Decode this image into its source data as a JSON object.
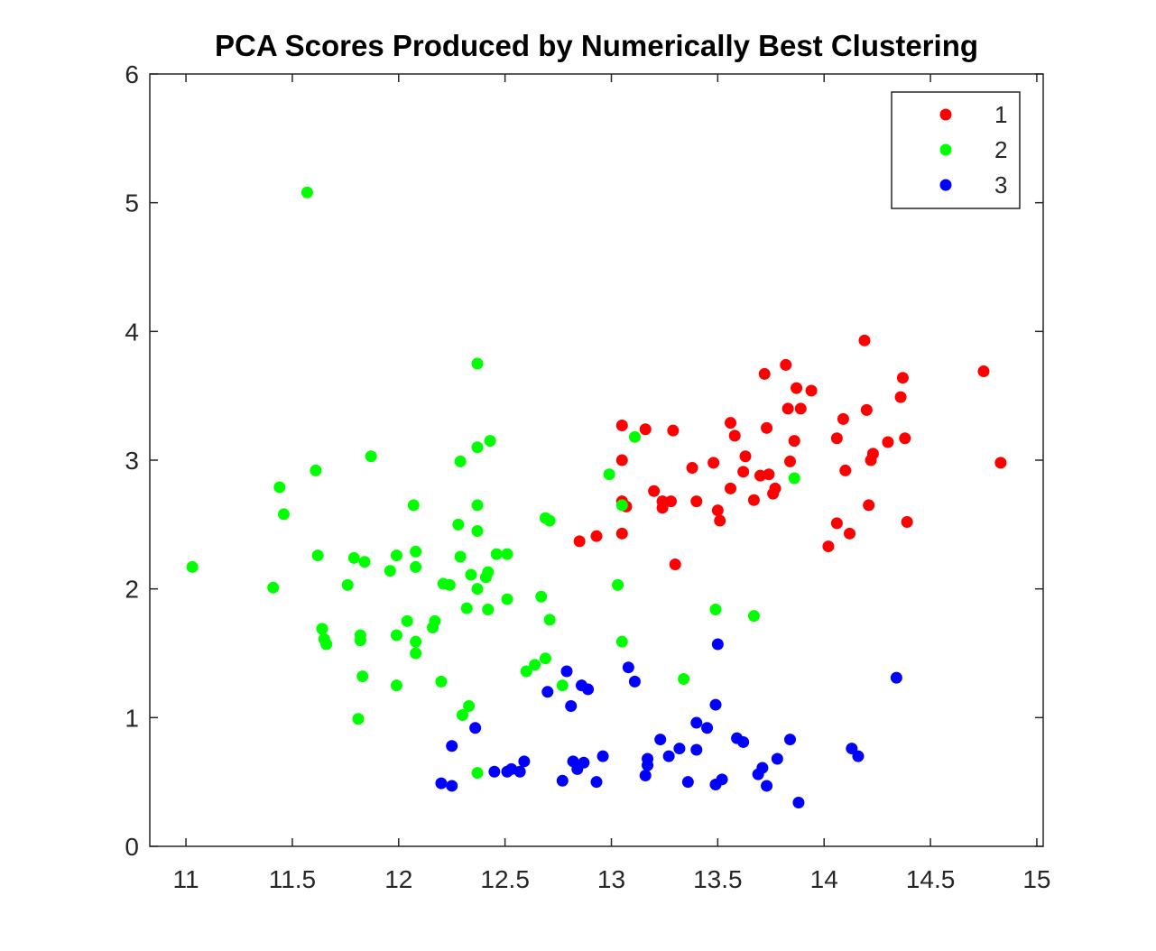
{
  "chart_data": {
    "type": "scatter",
    "title": "PCA Scores Produced by Numerically Best Clustering",
    "xlabel": "",
    "ylabel": "",
    "xlim": [
      10.83,
      15.03
    ],
    "ylim": [
      0,
      6
    ],
    "xticks": [
      11,
      11.5,
      12,
      12.5,
      13,
      13.5,
      14,
      14.5,
      15
    ],
    "xtick_labels": [
      "11",
      "11.5",
      "12",
      "12.5",
      "13",
      "13.5",
      "14",
      "14.5",
      "15"
    ],
    "yticks": [
      0,
      1,
      2,
      3,
      4,
      5,
      6
    ],
    "ytick_labels": [
      "0",
      "1",
      "2",
      "3",
      "4",
      "5",
      "6"
    ],
    "grid": false,
    "legend_position": "top-right",
    "series": [
      {
        "name": "1",
        "color": "#ff0000",
        "points": [
          [
            13.05,
            3.27
          ],
          [
            13.16,
            3.24
          ],
          [
            13.29,
            3.23
          ],
          [
            13.05,
            3.0
          ],
          [
            13.05,
            2.68
          ],
          [
            13.07,
            2.64
          ],
          [
            13.05,
            2.43
          ],
          [
            13.2,
            2.76
          ],
          [
            13.24,
            2.68
          ],
          [
            13.24,
            2.63
          ],
          [
            13.28,
            2.68
          ],
          [
            13.3,
            2.19
          ],
          [
            12.85,
            2.37
          ],
          [
            12.93,
            2.41
          ],
          [
            13.38,
            2.94
          ],
          [
            13.4,
            2.68
          ],
          [
            13.48,
            2.98
          ],
          [
            13.5,
            2.61
          ],
          [
            13.51,
            2.53
          ],
          [
            13.56,
            3.29
          ],
          [
            13.58,
            3.19
          ],
          [
            13.56,
            2.78
          ],
          [
            13.62,
            2.91
          ],
          [
            13.63,
            3.03
          ],
          [
            13.67,
            2.69
          ],
          [
            13.7,
            2.88
          ],
          [
            13.72,
            3.67
          ],
          [
            13.73,
            3.25
          ],
          [
            13.74,
            2.89
          ],
          [
            13.76,
            2.74
          ],
          [
            13.77,
            2.78
          ],
          [
            13.82,
            3.74
          ],
          [
            13.83,
            3.4
          ],
          [
            13.84,
            2.99
          ],
          [
            13.86,
            3.15
          ],
          [
            13.87,
            3.56
          ],
          [
            13.89,
            3.4
          ],
          [
            13.94,
            3.54
          ],
          [
            14.02,
            2.33
          ],
          [
            14.06,
            3.17
          ],
          [
            14.06,
            2.51
          ],
          [
            14.09,
            3.32
          ],
          [
            14.1,
            2.92
          ],
          [
            14.12,
            2.43
          ],
          [
            14.19,
            3.93
          ],
          [
            14.2,
            3.39
          ],
          [
            14.21,
            2.65
          ],
          [
            14.22,
            3.0
          ],
          [
            14.23,
            3.05
          ],
          [
            14.3,
            3.14
          ],
          [
            14.36,
            3.49
          ],
          [
            14.37,
            3.64
          ],
          [
            14.38,
            3.17
          ],
          [
            14.39,
            2.52
          ],
          [
            14.75,
            3.69
          ],
          [
            14.83,
            2.98
          ]
        ]
      },
      {
        "name": "2",
        "color": "#00ff00",
        "points": [
          [
            11.03,
            2.17
          ],
          [
            11.41,
            2.01
          ],
          [
            11.44,
            2.79
          ],
          [
            11.46,
            2.58
          ],
          [
            11.57,
            5.08
          ],
          [
            11.61,
            2.92
          ],
          [
            11.62,
            2.26
          ],
          [
            11.64,
            1.69
          ],
          [
            11.65,
            1.61
          ],
          [
            11.66,
            1.57
          ],
          [
            11.76,
            2.03
          ],
          [
            11.79,
            2.24
          ],
          [
            11.81,
            0.99
          ],
          [
            11.82,
            1.64
          ],
          [
            11.82,
            1.6
          ],
          [
            11.83,
            1.32
          ],
          [
            11.84,
            2.21
          ],
          [
            11.87,
            3.03
          ],
          [
            11.96,
            2.14
          ],
          [
            11.99,
            2.26
          ],
          [
            11.99,
            1.64
          ],
          [
            11.99,
            1.25
          ],
          [
            12.04,
            1.75
          ],
          [
            12.07,
            2.65
          ],
          [
            12.08,
            2.29
          ],
          [
            12.08,
            2.17
          ],
          [
            12.08,
            1.59
          ],
          [
            12.08,
            1.5
          ],
          [
            12.16,
            1.7
          ],
          [
            12.17,
            1.75
          ],
          [
            12.2,
            1.28
          ],
          [
            12.21,
            2.04
          ],
          [
            12.24,
            2.03
          ],
          [
            12.28,
            2.5
          ],
          [
            12.29,
            2.25
          ],
          [
            12.29,
            2.99
          ],
          [
            12.3,
            1.02
          ],
          [
            12.32,
            1.85
          ],
          [
            12.33,
            1.09
          ],
          [
            12.34,
            2.11
          ],
          [
            12.37,
            3.75
          ],
          [
            12.37,
            3.1
          ],
          [
            12.37,
            2.65
          ],
          [
            12.37,
            2.45
          ],
          [
            12.37,
            2.0
          ],
          [
            12.37,
            0.57
          ],
          [
            12.41,
            2.09
          ],
          [
            12.42,
            2.13
          ],
          [
            12.42,
            1.84
          ],
          [
            12.43,
            3.15
          ],
          [
            12.46,
            2.27
          ],
          [
            12.51,
            2.27
          ],
          [
            12.51,
            1.92
          ],
          [
            12.6,
            1.36
          ],
          [
            12.64,
            1.41
          ],
          [
            12.67,
            1.94
          ],
          [
            12.69,
            2.55
          ],
          [
            12.69,
            1.46
          ],
          [
            12.71,
            2.53
          ],
          [
            12.71,
            1.76
          ],
          [
            12.77,
            1.25
          ],
          [
            12.99,
            2.89
          ],
          [
            13.03,
            2.03
          ],
          [
            13.05,
            2.65
          ],
          [
            13.05,
            1.59
          ],
          [
            13.11,
            3.18
          ],
          [
            13.34,
            1.3
          ],
          [
            13.49,
            1.84
          ],
          [
            13.67,
            1.79
          ],
          [
            13.86,
            2.86
          ]
        ]
      },
      {
        "name": "3",
        "color": "#0000ff",
        "points": [
          [
            12.2,
            0.49
          ],
          [
            12.25,
            0.47
          ],
          [
            12.25,
            0.78
          ],
          [
            12.36,
            0.92
          ],
          [
            12.45,
            0.58
          ],
          [
            12.51,
            0.58
          ],
          [
            12.53,
            0.6
          ],
          [
            12.57,
            0.58
          ],
          [
            12.59,
            0.66
          ],
          [
            12.7,
            1.2
          ],
          [
            12.77,
            0.51
          ],
          [
            12.79,
            1.36
          ],
          [
            12.81,
            1.09
          ],
          [
            12.82,
            0.66
          ],
          [
            12.84,
            0.6
          ],
          [
            12.86,
            1.25
          ],
          [
            12.87,
            0.65
          ],
          [
            12.89,
            1.22
          ],
          [
            12.93,
            0.5
          ],
          [
            12.96,
            0.7
          ],
          [
            13.08,
            1.39
          ],
          [
            13.11,
            1.28
          ],
          [
            13.16,
            0.55
          ],
          [
            13.17,
            0.63
          ],
          [
            13.17,
            0.68
          ],
          [
            13.23,
            0.83
          ],
          [
            13.27,
            0.7
          ],
          [
            13.32,
            0.76
          ],
          [
            13.36,
            0.5
          ],
          [
            13.4,
            0.75
          ],
          [
            13.4,
            0.96
          ],
          [
            13.45,
            0.92
          ],
          [
            13.49,
            1.1
          ],
          [
            13.49,
            0.48
          ],
          [
            13.5,
            1.57
          ],
          [
            13.52,
            0.52
          ],
          [
            13.59,
            0.84
          ],
          [
            13.62,
            0.81
          ],
          [
            13.69,
            0.56
          ],
          [
            13.71,
            0.61
          ],
          [
            13.73,
            0.47
          ],
          [
            13.78,
            0.68
          ],
          [
            13.84,
            0.83
          ],
          [
            13.88,
            0.34
          ],
          [
            14.13,
            0.76
          ],
          [
            14.16,
            0.7
          ],
          [
            14.34,
            1.31
          ]
        ]
      }
    ]
  }
}
